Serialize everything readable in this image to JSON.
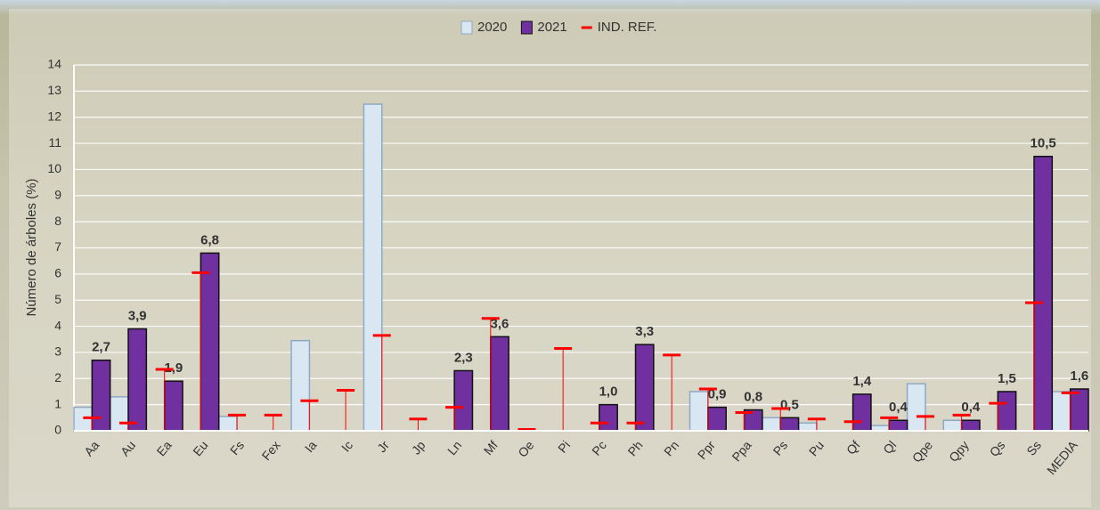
{
  "chart_data": {
    "type": "bar",
    "y_label": "Número de árboles (%)",
    "categories": [
      "Aa",
      "Au",
      "Ea",
      "Eu",
      "Fs",
      "Fex",
      "Ia",
      "Ic",
      "Jr",
      "Jp",
      "Ln",
      "Mf",
      "Oe",
      "Pi",
      "Pc",
      "Ph",
      "Pn",
      "Ppr",
      "Ppa",
      "Ps",
      "Pu",
      "Qf",
      "Ql",
      "Qpe",
      "Qpy",
      "Qs",
      "Ss",
      "MEDIA"
    ],
    "series": [
      {
        "name": "2020",
        "color": "#d9e7f3",
        "values": [
          0.9,
          1.3,
          null,
          null,
          0.55,
          null,
          3.45,
          null,
          12.5,
          null,
          null,
          null,
          null,
          null,
          null,
          null,
          null,
          1.5,
          null,
          0.5,
          0.3,
          null,
          0.2,
          1.8,
          0.4,
          null,
          null,
          1.5
        ]
      },
      {
        "name": "2021",
        "color": "#7030a0",
        "values": [
          2.7,
          3.9,
          1.9,
          6.8,
          null,
          null,
          null,
          null,
          null,
          null,
          2.3,
          3.6,
          null,
          null,
          1.0,
          3.3,
          null,
          0.9,
          0.8,
          0.5,
          null,
          1.4,
          0.4,
          null,
          0.4,
          1.5,
          10.5,
          1.6
        ],
        "value_labels": [
          "2,7",
          "3,9",
          "1,9",
          "6,8",
          null,
          null,
          null,
          null,
          null,
          null,
          "2,3",
          "3,6",
          null,
          null,
          "1,0",
          "3,3",
          null,
          "0,9",
          "0,8",
          "0,5",
          null,
          "1,4",
          "0,4",
          null,
          "0,4",
          "1,5",
          "10,5",
          "1,6"
        ]
      },
      {
        "name": "IND. REF.",
        "color": "#ff0000",
        "marker": "dash",
        "values": [
          0.5,
          0.3,
          2.35,
          6.05,
          0.6,
          0.6,
          1.15,
          1.55,
          3.65,
          0.45,
          0.9,
          4.3,
          0.05,
          3.15,
          0.3,
          0.3,
          2.9,
          1.6,
          0.7,
          0.85,
          0.45,
          0.35,
          0.5,
          0.55,
          0.6,
          1.05,
          4.9,
          1.45
        ]
      }
    ],
    "ylim": [
      0,
      14
    ],
    "yticks": [
      0,
      1,
      2,
      3,
      4,
      5,
      6,
      7,
      8,
      9,
      10,
      11,
      12,
      13,
      14
    ],
    "grid": true,
    "legend": "top"
  }
}
